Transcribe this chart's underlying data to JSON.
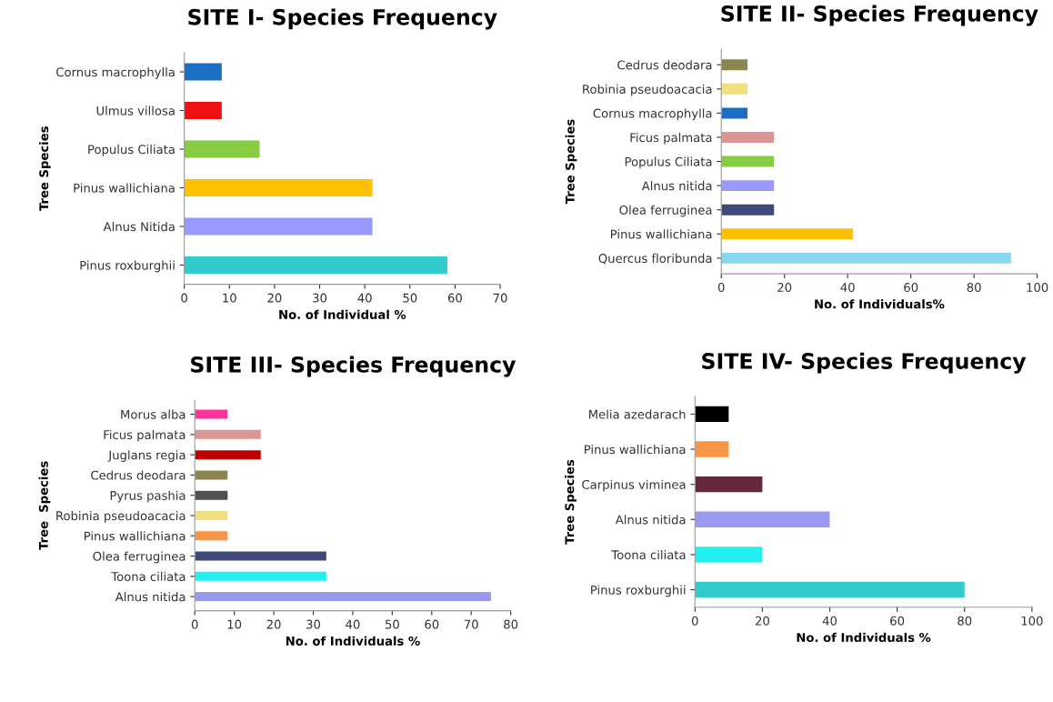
{
  "chart_data": [
    {
      "type": "bar",
      "orientation": "horizontal",
      "title": "SITE I- Species Frequency",
      "xlabel": "No. of Individual %",
      "ylabel": "Tree Species",
      "grid": false,
      "legend": false,
      "categories": [
        "Cornus macrophylla",
        "Ulmus villosa",
        "Populus Ciliata",
        "Pinus wallichiana",
        "Alnus Nitida",
        "Pinus roxburghii"
      ],
      "values": [
        8.3,
        8.3,
        16.7,
        41.7,
        41.7,
        58.3
      ],
      "colors": [
        "#1a6fc4",
        "#ee1111",
        "#88cc44",
        "#ffc000",
        "#9999ff",
        "#33cccc"
      ],
      "xlim": [
        0,
        70
      ],
      "xticks": [
        0,
        10,
        20,
        30,
        40,
        50,
        60,
        70
      ]
    },
    {
      "type": "bar",
      "orientation": "horizontal",
      "title": "SITE II- Species Frequency",
      "xlabel": "No. of Individuals%",
      "ylabel": "Tree Species",
      "grid": false,
      "legend": false,
      "categories": [
        "Cedrus deodara",
        "Robinia pseudoacacia",
        "Cornus macrophylla",
        "Ficus palmata",
        "Populus Ciliata",
        "Alnus nitida",
        "Olea ferruginea",
        "Pinus wallichiana",
        "Quercus floribunda"
      ],
      "values": [
        8.3,
        8.3,
        8.3,
        16.7,
        16.7,
        16.7,
        16.7,
        41.7,
        91.7
      ],
      "colors": [
        "#8b8552",
        "#f0e080",
        "#1a6fc4",
        "#d99694",
        "#88cc44",
        "#9999ff",
        "#3f4a7a",
        "#ffc000",
        "#87d8ef"
      ],
      "xlim": [
        0,
        100
      ],
      "xticks": [
        0,
        20,
        40,
        60,
        80,
        100
      ]
    },
    {
      "type": "bar",
      "orientation": "horizontal",
      "title": "SITE III- Species Frequency",
      "xlabel": "No. of Individuals %",
      "ylabel": "Tree  Species",
      "grid": false,
      "legend": false,
      "categories": [
        "Morus alba",
        "Ficus palmata",
        "Juglans regia",
        "Cedrus deodara",
        "Pyrus pashia",
        "Robinia pseudoacacia",
        "Pinus wallichiana",
        "Olea ferruginea",
        "Toona ciliata",
        "Alnus nitida"
      ],
      "values": [
        8.3,
        16.7,
        16.7,
        8.3,
        8.3,
        8.3,
        8.3,
        33.3,
        33.3,
        75
      ],
      "colors": [
        "#ff3399",
        "#d99694",
        "#c00000",
        "#8b8552",
        "#505050",
        "#f0e080",
        "#f79646",
        "#3f4a7a",
        "#22f0f0",
        "#9999ee"
      ],
      "xlim": [
        0,
        80
      ],
      "xticks": [
        0,
        10,
        20,
        30,
        40,
        50,
        60,
        70,
        80
      ]
    },
    {
      "type": "bar",
      "orientation": "horizontal",
      "title": "SITE IV- Species Frequency",
      "xlabel": "No. of Individuals %",
      "ylabel": "Tree Species",
      "grid": false,
      "legend": false,
      "categories": [
        "Melia azedarach",
        "Pinus wallichiana",
        "Carpinus viminea",
        "Alnus nitida",
        "Toona ciliata",
        "Pinus roxburghii"
      ],
      "values": [
        10,
        10,
        20,
        40,
        20,
        80
      ],
      "colors": [
        "#000000",
        "#f79646",
        "#632a3e",
        "#9999ee",
        "#22f0f0",
        "#33cccc"
      ],
      "xlim": [
        0,
        100
      ],
      "xticks": [
        0,
        20,
        40,
        60,
        80,
        100
      ]
    }
  ]
}
